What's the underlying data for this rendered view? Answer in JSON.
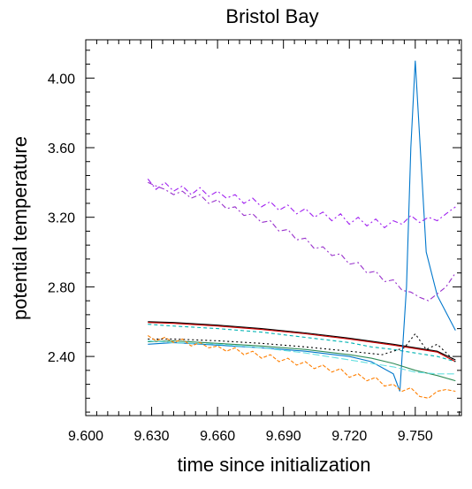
{
  "chart_data": {
    "type": "line",
    "title": "Bristol Bay",
    "xlabel": "time since initialization",
    "ylabel": "potential temperature",
    "xlim": [
      9.6,
      9.771
    ],
    "ylim": [
      2.06,
      4.22
    ],
    "x_ticks": [
      "9.600",
      "9.630",
      "9.660",
      "9.690",
      "9.720",
      "9.750"
    ],
    "y_ticks": [
      "2.40",
      "2.80",
      "3.20",
      "3.60",
      "4.00"
    ],
    "grid": false,
    "series": [
      {
        "color": "#000000",
        "dash": "",
        "x": [
          9.6283,
          9.64,
          9.66,
          9.68,
          9.7,
          9.72,
          9.74,
          9.76,
          9.7683
        ],
        "y": [
          2.6,
          2.595,
          2.58,
          2.56,
          2.535,
          2.505,
          2.47,
          2.43,
          2.38
        ]
      },
      {
        "color": "#cc0000",
        "dash": "",
        "x": [
          9.6283,
          9.64,
          9.66,
          9.68,
          9.7,
          9.72,
          9.74,
          9.76,
          9.7683
        ],
        "y": [
          2.595,
          2.59,
          2.575,
          2.555,
          2.53,
          2.5,
          2.465,
          2.425,
          2.37
        ]
      },
      {
        "color": "#00b3b3",
        "dash": "4,3",
        "x": [
          9.6283,
          9.64,
          9.66,
          9.68,
          9.7,
          9.72,
          9.73,
          9.74,
          9.75,
          9.76,
          9.7683
        ],
        "y": [
          2.585,
          2.575,
          2.56,
          2.54,
          2.51,
          2.48,
          2.455,
          2.44,
          2.42,
          2.4,
          2.37
        ]
      },
      {
        "color": "#000000",
        "dash": "2,3",
        "x": [
          9.6283,
          9.64,
          9.66,
          9.68,
          9.7,
          9.72,
          9.735,
          9.745,
          9.75,
          9.755,
          9.76,
          9.7683
        ],
        "y": [
          2.5,
          2.5,
          2.49,
          2.475,
          2.455,
          2.43,
          2.41,
          2.45,
          2.53,
          2.44,
          2.47,
          2.37
        ]
      },
      {
        "color": "#0077cc",
        "dash": "",
        "x": [
          9.6283,
          9.64,
          9.66,
          9.68,
          9.7,
          9.72,
          9.73,
          9.74,
          9.743,
          9.746,
          9.748,
          9.75,
          9.755,
          9.76,
          9.7683
        ],
        "y": [
          2.47,
          2.48,
          2.465,
          2.45,
          2.43,
          2.4,
          2.37,
          2.3,
          2.2,
          2.8,
          3.6,
          4.1,
          3.0,
          2.75,
          2.55
        ]
      },
      {
        "color": "#2e8b57",
        "dash": "",
        "x": [
          9.6283,
          9.64,
          9.66,
          9.68,
          9.7,
          9.72,
          9.73,
          9.74,
          9.75,
          9.76,
          9.7683
        ],
        "y": [
          2.485,
          2.49,
          2.475,
          2.46,
          2.44,
          2.41,
          2.39,
          2.36,
          2.32,
          2.29,
          2.26
        ]
      },
      {
        "color": "#66e0e0",
        "dash": "8,3",
        "x": [
          9.6283,
          9.64,
          9.66,
          9.68,
          9.7,
          9.72,
          9.73,
          9.74,
          9.75,
          9.76,
          9.7683
        ],
        "y": [
          2.49,
          2.48,
          2.47,
          2.45,
          2.42,
          2.38,
          2.36,
          2.34,
          2.31,
          2.3,
          2.3
        ]
      },
      {
        "color": "#ff7f00",
        "dash": "4,2",
        "x": [
          9.6283,
          9.632,
          9.636,
          9.64,
          9.644,
          9.648,
          9.652,
          9.656,
          9.66,
          9.664,
          9.668,
          9.672,
          9.676,
          9.68,
          9.684,
          9.688,
          9.692,
          9.696,
          9.7,
          9.704,
          9.708,
          9.712,
          9.716,
          9.72,
          9.724,
          9.728,
          9.732,
          9.736,
          9.74,
          9.744,
          9.748,
          9.752,
          9.756,
          9.76,
          9.764,
          9.7683
        ],
        "y": [
          2.52,
          2.49,
          2.51,
          2.48,
          2.5,
          2.46,
          2.48,
          2.45,
          2.46,
          2.43,
          2.45,
          2.41,
          2.43,
          2.39,
          2.41,
          2.37,
          2.39,
          2.35,
          2.37,
          2.33,
          2.35,
          2.31,
          2.33,
          2.28,
          2.3,
          2.26,
          2.28,
          2.23,
          2.24,
          2.2,
          2.22,
          2.17,
          2.16,
          2.2,
          2.21,
          2.2
        ]
      },
      {
        "color": "#a020f0",
        "dash": "6,3,2,3",
        "x": [
          9.6283,
          9.632,
          9.636,
          9.64,
          9.644,
          9.648,
          9.652,
          9.656,
          9.66,
          9.664,
          9.668,
          9.672,
          9.676,
          9.68,
          9.684,
          9.688,
          9.692,
          9.696,
          9.7,
          9.704,
          9.708,
          9.712,
          9.716,
          9.72,
          9.724,
          9.728,
          9.732,
          9.736,
          9.74,
          9.744,
          9.748,
          9.752,
          9.756,
          9.76,
          9.764,
          9.7683
        ],
        "y": [
          3.42,
          3.36,
          3.4,
          3.35,
          3.38,
          3.33,
          3.37,
          3.32,
          3.35,
          3.31,
          3.33,
          3.28,
          3.31,
          3.26,
          3.29,
          3.24,
          3.27,
          3.22,
          3.25,
          3.2,
          3.23,
          3.18,
          3.22,
          3.16,
          3.2,
          3.15,
          3.19,
          3.14,
          3.18,
          3.16,
          3.21,
          3.17,
          3.2,
          3.18,
          3.22,
          3.26
        ]
      },
      {
        "color": "#9932cc",
        "dash": "6,3,2,3",
        "x": [
          9.6283,
          9.632,
          9.636,
          9.64,
          9.644,
          9.648,
          9.652,
          9.656,
          9.66,
          9.664,
          9.668,
          9.672,
          9.676,
          9.68,
          9.684,
          9.688,
          9.692,
          9.696,
          9.7,
          9.704,
          9.708,
          9.712,
          9.716,
          9.72,
          9.724,
          9.728,
          9.732,
          9.736,
          9.74,
          9.744,
          9.748,
          9.752,
          9.756,
          9.76,
          9.764,
          9.7683
        ],
        "y": [
          3.4,
          3.38,
          3.36,
          3.33,
          3.35,
          3.31,
          3.33,
          3.28,
          3.3,
          3.25,
          3.26,
          3.21,
          3.22,
          3.17,
          3.18,
          3.12,
          3.13,
          3.07,
          3.08,
          3.02,
          3.03,
          2.98,
          2.99,
          2.93,
          2.94,
          2.88,
          2.89,
          2.83,
          2.84,
          2.78,
          2.77,
          2.74,
          2.72,
          2.76,
          2.8,
          2.88
        ]
      }
    ]
  }
}
